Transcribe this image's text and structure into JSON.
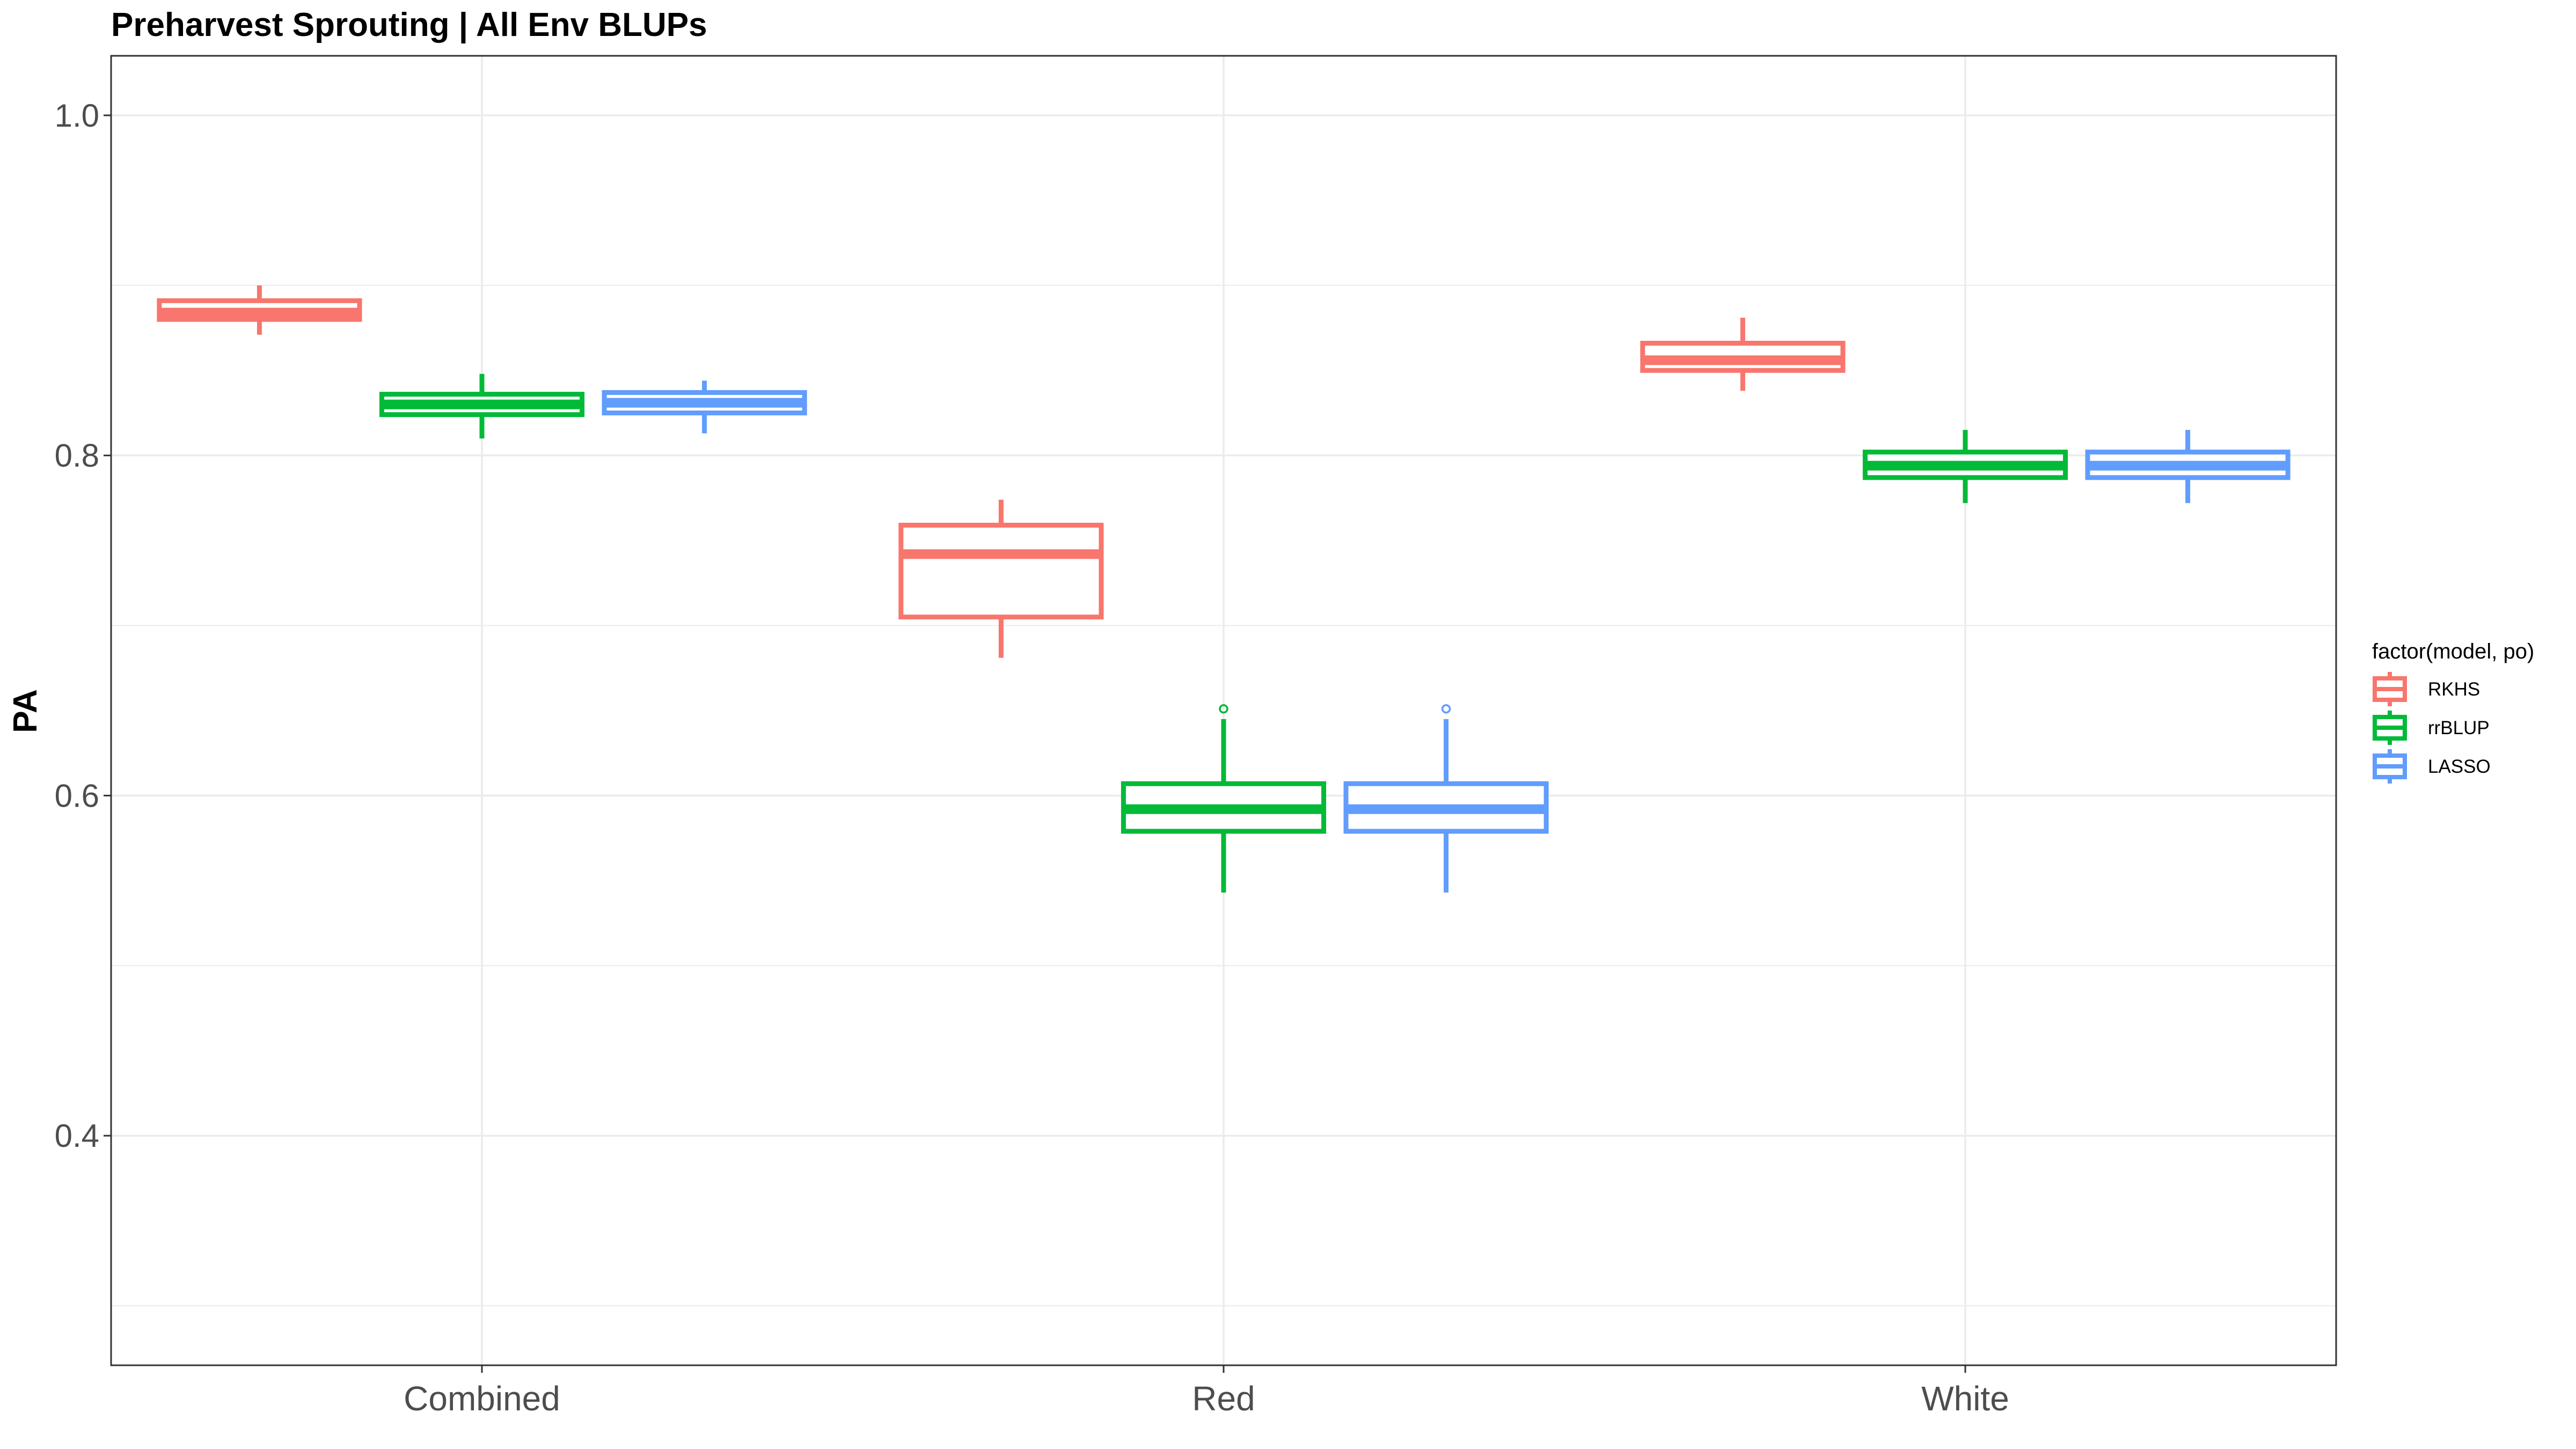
{
  "chart_data": {
    "type": "box",
    "title": "Preharvest Sprouting | All Env BLUPs",
    "xlabel": "",
    "ylabel": "PA",
    "ylim": [
      0.265,
      1.035
    ],
    "yticks": [
      0.4,
      0.6,
      0.8,
      1.0
    ],
    "ytick_labels": [
      "0.4",
      "0.6",
      "0.8",
      "1.0"
    ],
    "categories": [
      "Combined",
      "Red",
      "White"
    ],
    "grid": true,
    "legend": {
      "title": "factor(model, po)",
      "position": "right"
    },
    "series": [
      {
        "name": "RKHS",
        "color": "#F8766D",
        "boxes": [
          {
            "whisker_low": 0.871,
            "q1": 0.88,
            "median": 0.884,
            "q3": 0.891,
            "whisker_high": 0.9,
            "outliers": []
          },
          {
            "whisker_low": 0.681,
            "q1": 0.705,
            "median": 0.742,
            "q3": 0.759,
            "whisker_high": 0.774,
            "outliers": []
          },
          {
            "whisker_low": 0.838,
            "q1": 0.85,
            "median": 0.856,
            "q3": 0.866,
            "whisker_high": 0.881,
            "outliers": []
          }
        ]
      },
      {
        "name": "rrBLUP",
        "color": "#00BA38",
        "boxes": [
          {
            "whisker_low": 0.81,
            "q1": 0.824,
            "median": 0.83,
            "q3": 0.836,
            "whisker_high": 0.848,
            "outliers": []
          },
          {
            "whisker_low": 0.543,
            "q1": 0.579,
            "median": 0.592,
            "q3": 0.607,
            "whisker_high": 0.645,
            "outliers": [
              0.651
            ]
          },
          {
            "whisker_low": 0.772,
            "q1": 0.787,
            "median": 0.794,
            "q3": 0.802,
            "whisker_high": 0.815,
            "outliers": []
          }
        ]
      },
      {
        "name": "LASSO",
        "color": "#619CFF",
        "boxes": [
          {
            "whisker_low": 0.813,
            "q1": 0.825,
            "median": 0.831,
            "q3": 0.837,
            "whisker_high": 0.844,
            "outliers": []
          },
          {
            "whisker_low": 0.543,
            "q1": 0.579,
            "median": 0.592,
            "q3": 0.607,
            "whisker_high": 0.645,
            "outliers": [
              0.651
            ]
          },
          {
            "whisker_low": 0.772,
            "q1": 0.787,
            "median": 0.794,
            "q3": 0.802,
            "whisker_high": 0.815,
            "outliers": []
          }
        ]
      }
    ]
  }
}
